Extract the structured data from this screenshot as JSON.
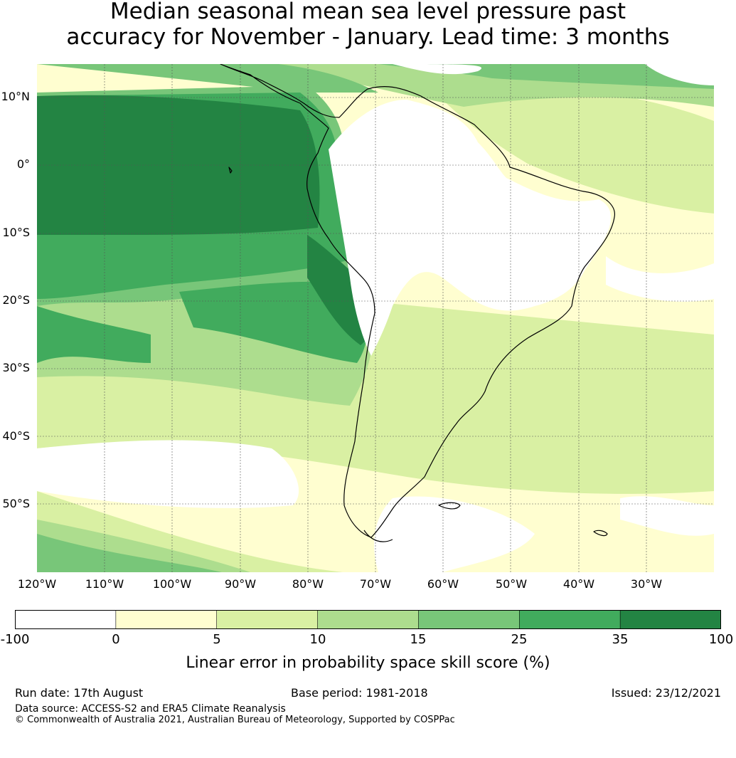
{
  "title_line1": "Median seasonal mean sea level pressure past",
  "title_line2": "accuracy for November - January. Lead time: 3 months",
  "map": {
    "lon_labels": [
      "120°W",
      "110°W",
      "100°W",
      "90°W",
      "80°W",
      "70°W",
      "60°W",
      "50°W",
      "40°W",
      "30°W"
    ],
    "lat_labels": [
      "10°N",
      "0°",
      "10°S",
      "20°S",
      "30°S",
      "40°S",
      "50°S"
    ],
    "lon_range": [
      -120,
      -20
    ],
    "lat_range": [
      -60,
      15
    ],
    "gridlines": true,
    "palette": {
      "land_outline": "#000000",
      "c_neg": "#ffffff",
      "c_0_5": "#fffed0",
      "c_5_10": "#d9f0a3",
      "c_10_15": "#addd8e",
      "c_15_25": "#78c679",
      "c_25_35": "#41ab5d",
      "c_35_100": "#238443"
    }
  },
  "colorbar": {
    "tick_labels": [
      "-100",
      "0",
      "5",
      "10",
      "15",
      "25",
      "35",
      "100"
    ],
    "colors": [
      "#ffffff",
      "#fffed0",
      "#d9f0a3",
      "#addd8e",
      "#78c679",
      "#41ab5d",
      "#238443"
    ],
    "label": "Linear error in probability space skill score (%)"
  },
  "footer": {
    "run_date": "Run date: 17th August",
    "base_period": "Base period: 1981-2018",
    "issued": "Issued: 23/12/2021",
    "data_source": "Data source: ACCESS-S2 and ERA5 Climate Reanalysis",
    "copyright": "© Commonwealth of Australia 2021, Australian Bureau of Meteorology, Supported by COSPPac"
  }
}
